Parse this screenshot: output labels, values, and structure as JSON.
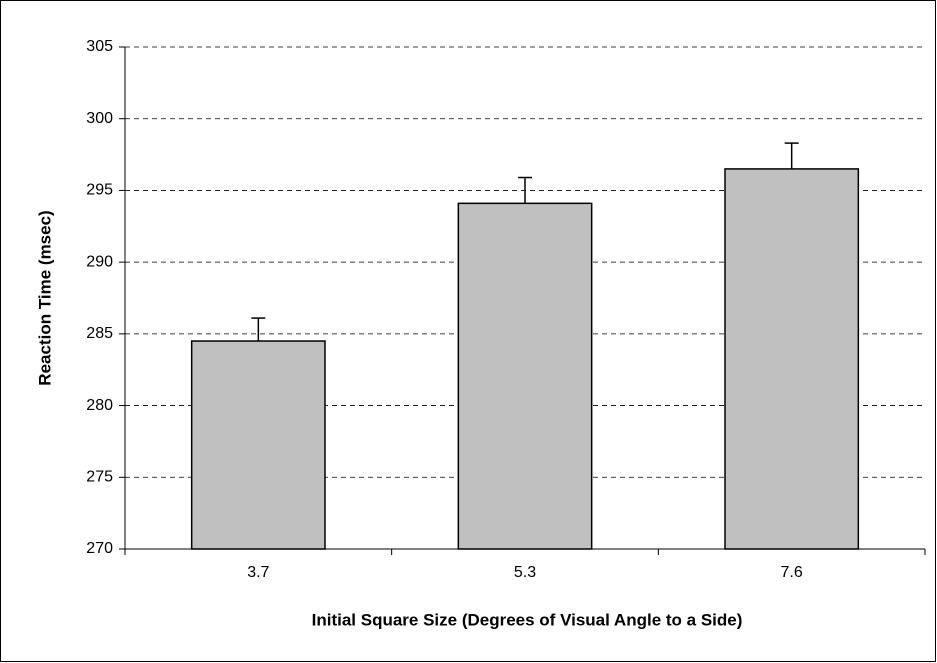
{
  "chart_data": {
    "type": "bar",
    "xlabel": "Initial Square Size (Degrees of Visual Angle to a Side)",
    "ylabel": "Reaction Time (msec)",
    "categories": [
      "3.7",
      "5.3",
      "7.6"
    ],
    "values": [
      284.5,
      294.1,
      296.5
    ],
    "errors": [
      1.6,
      1.8,
      1.8
    ],
    "color": "#c0c0c0",
    "ylim": [
      270,
      305
    ],
    "yticks": [
      270,
      275,
      280,
      285,
      290,
      295,
      300,
      305
    ],
    "grid": true
  }
}
